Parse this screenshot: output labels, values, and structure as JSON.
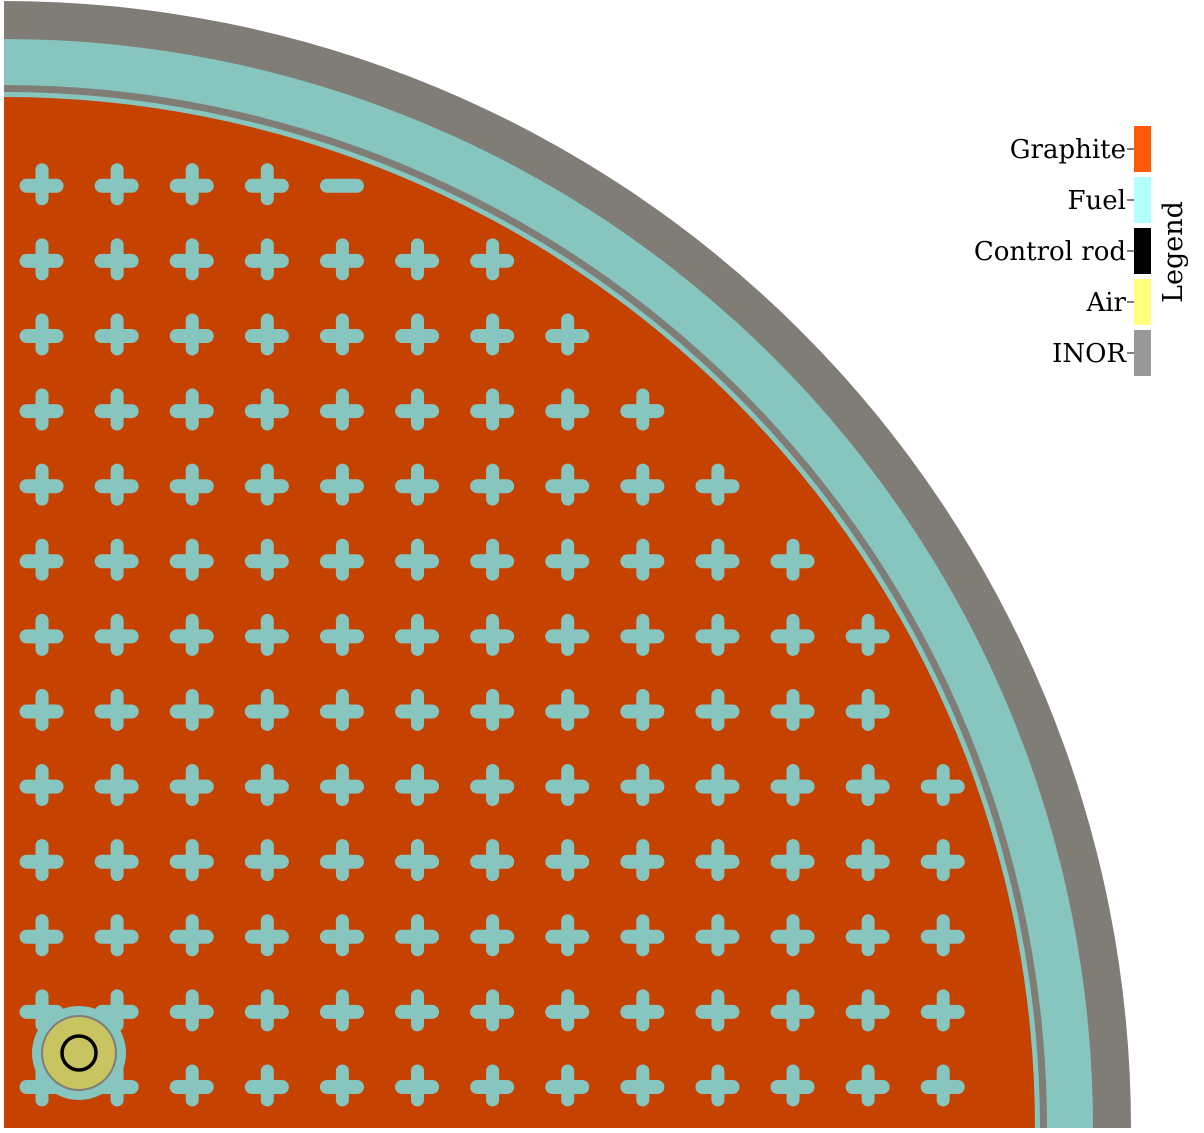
{
  "legend": {
    "title": "Legend",
    "items": [
      {
        "label": "Graphite",
        "color": "#ff5a0a"
      },
      {
        "label": "Fuel",
        "color": "#b3ffff"
      },
      {
        "label": "Control rod",
        "color": "#000000"
      },
      {
        "label": "Air",
        "color": "#ffff80"
      },
      {
        "label": "INOR",
        "color": "#999999"
      }
    ]
  },
  "colors": {
    "graphite_region": "#c64200",
    "fuel_region": "#87c5bf",
    "inor_region": "#7f7d76",
    "air_region": "#c9c462",
    "control_rod": "#000000",
    "background": "#ffffff"
  },
  "geometry_notes": {
    "view": "quarter-core cross section",
    "channel_pattern": "square lattice of fuel channels in graphite"
  }
}
